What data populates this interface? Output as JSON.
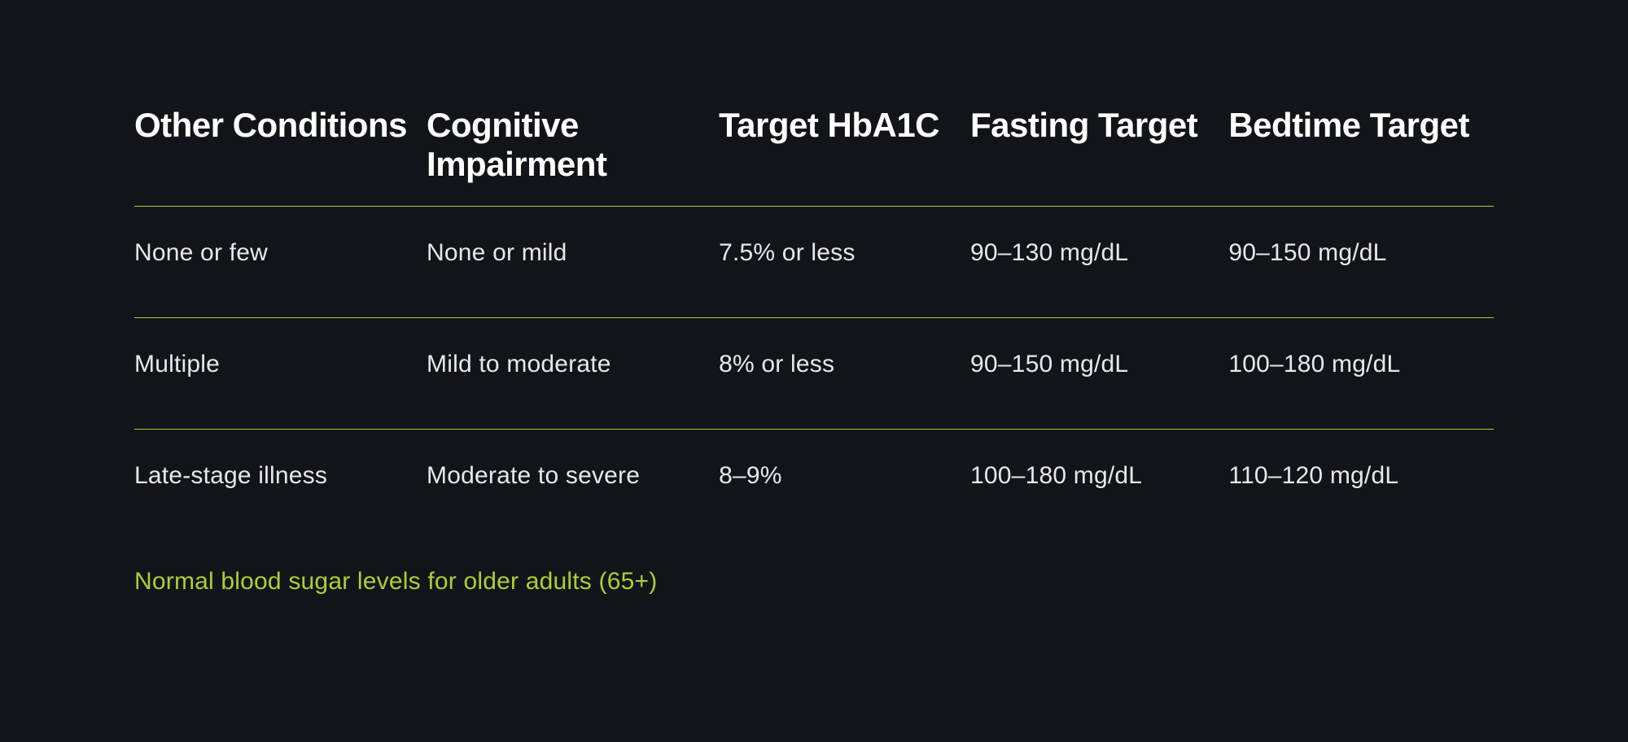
{
  "table": {
    "columns": [
      "Other Conditions",
      "Cognitive Impairment",
      "Target HbA1C",
      "Fasting Target",
      "Bedtime Target"
    ],
    "rows": [
      [
        "None or few",
        "None or mild",
        "7.5% or less",
        "90–130 mg/dL",
        "90–150 mg/dL"
      ],
      [
        "Multiple",
        "Mild to moderate",
        "8% or less",
        "90–150 mg/dL",
        "100–180 mg/dL"
      ],
      [
        "Late-stage illness",
        "Moderate to severe",
        "8–9%",
        "100–180 mg/dL",
        "110–120 mg/dL"
      ]
    ],
    "caption": "Normal blood sugar levels for older adults (65+)",
    "column_widths_pct": [
      21.5,
      21.5,
      18.5,
      19,
      19.5
    ],
    "header_fontsize_pt": 32,
    "cell_fontsize_pt": 22,
    "caption_fontsize_pt": 22,
    "colors": {
      "background": "#12141a",
      "header_text": "#ffffff",
      "cell_text": "#e8e8e8",
      "rule": "#b2cc33",
      "caption": "#b2cc33"
    }
  }
}
